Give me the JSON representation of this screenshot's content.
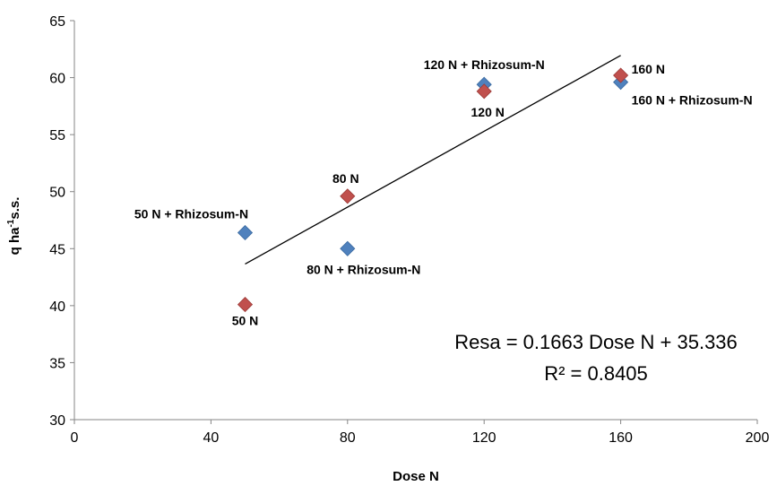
{
  "chart_data": {
    "type": "scatter",
    "xlabel": "Dose N",
    "ylabel_main": "q ha",
    "ylabel_sup": "-1",
    "ylabel_rest": "s.s.",
    "xlim": [
      0,
      200
    ],
    "ylim": [
      30,
      65
    ],
    "xticks": [
      0,
      40,
      80,
      120,
      160,
      200
    ],
    "yticks": [
      30,
      35,
      40,
      45,
      50,
      55,
      60,
      65
    ],
    "grid": false,
    "series": [
      {
        "color": "#4f81bd",
        "points": [
          {
            "x": 50,
            "y": 46.4,
            "label": "50 N + Rhizosum-N"
          },
          {
            "x": 80,
            "y": 45.0,
            "label": "80 N + Rhizosum-N"
          },
          {
            "x": 120,
            "y": 59.4,
            "label": "120 N + Rhizosum-N"
          },
          {
            "x": 160,
            "y": 59.6,
            "label": "160 N + Rhizosum-N"
          }
        ]
      },
      {
        "color": "#c0504d",
        "points": [
          {
            "x": 50,
            "y": 40.1,
            "label": "50 N"
          },
          {
            "x": 80,
            "y": 49.6,
            "label": "80 N"
          },
          {
            "x": 120,
            "y": 58.8,
            "label": "120 N"
          },
          {
            "x": 160,
            "y": 60.2,
            "label": "160 N"
          }
        ]
      }
    ],
    "trendline": {
      "slope": 0.1663,
      "intercept": 35.336,
      "x_range": [
        50,
        160
      ],
      "equation": "Resa = 0.1663 Dose N + 35.336",
      "r_squared": "R² = 0.8405"
    }
  }
}
